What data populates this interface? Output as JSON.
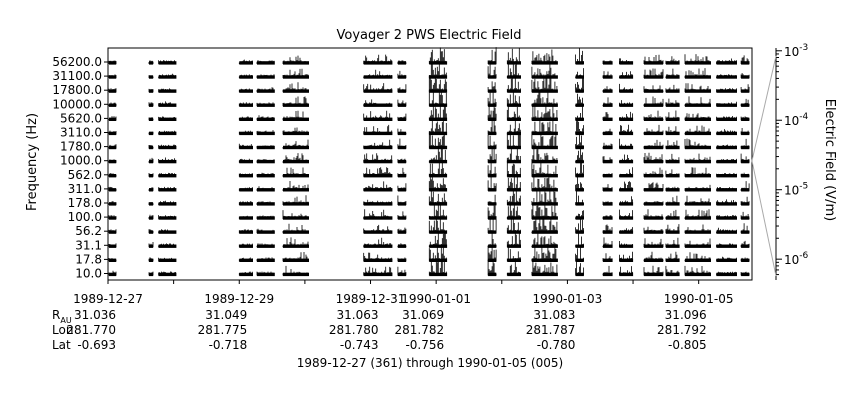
{
  "chart_data": {
    "type": "line",
    "title": "Voyager 2 PWS Electric Field",
    "ylabel": "Frequency (Hz)",
    "right_axis_label": "Electric Field (V/m)",
    "xlabel": "1989-12-27 (361) through 1990-01-05 (005)",
    "channel_frequencies_hz": [
      "56200.0",
      "31100.0",
      "17800.0",
      "10000.0",
      "5620.0",
      "3110.0",
      "1780.0",
      "1000.0",
      "562.0",
      "311.0",
      "178.0",
      "100.0",
      "56.2",
      "31.1",
      "17.8",
      "10.0"
    ],
    "right_axis_ticks": [
      {
        "base": "10",
        "exp": "-3",
        "log10": -3
      },
      {
        "base": "10",
        "exp": "-4",
        "log10": -4
      },
      {
        "base": "10",
        "exp": "-5",
        "log10": -5
      },
      {
        "base": "10",
        "exp": "-6",
        "log10": -6
      }
    ],
    "right_axis_range_log10": [
      -6.3,
      -2.96
    ],
    "x_range": [
      "1989-12-27",
      "1990-01-05T19:30"
    ],
    "x_ticks": [
      {
        "date": "1989-12-27",
        "label": "1989-12-27",
        "r_au": "31.036",
        "lon": "281.770",
        "lat": "-0.693"
      },
      {
        "date": "1989-12-28",
        "label": "",
        "r_au": "",
        "lon": "",
        "lat": ""
      },
      {
        "date": "1989-12-29",
        "label": "1989-12-29",
        "r_au": "31.049",
        "lon": "281.775",
        "lat": "-0.718"
      },
      {
        "date": "1989-12-30",
        "label": "",
        "r_au": "",
        "lon": "",
        "lat": ""
      },
      {
        "date": "1989-12-31",
        "label": "1989-12-31",
        "r_au": "31.063",
        "lon": "281.780",
        "lat": "-0.743"
      },
      {
        "date": "1990-01-01",
        "label": "1990-01-01",
        "r_au": "31.069",
        "lon": "281.782",
        "lat": "-0.756"
      },
      {
        "date": "1990-01-02",
        "label": "",
        "r_au": "",
        "lon": "",
        "lat": ""
      },
      {
        "date": "1990-01-03",
        "label": "1990-01-03",
        "r_au": "31.083",
        "lon": "281.787",
        "lat": "-0.780"
      },
      {
        "date": "1990-01-04",
        "label": "",
        "r_au": "",
        "lon": "",
        "lat": ""
      },
      {
        "date": "1990-01-05",
        "label": "1990-01-05",
        "r_au": "31.096",
        "lon": "281.792",
        "lat": "-0.805"
      }
    ],
    "ephemeris_labels": {
      "r_main": "R",
      "r_sub": "AU",
      "lon": "Lon",
      "lat": "Lat"
    },
    "data_segments": [
      {
        "start": "1989-12-27T00:00",
        "end": "1989-12-27T03:00",
        "activity": "quiet"
      },
      {
        "start": "1989-12-27T15:00",
        "end": "1989-12-27T16:30",
        "activity": "quiet"
      },
      {
        "start": "1989-12-27T18:30",
        "end": "1989-12-28T01:00",
        "activity": "quiet"
      },
      {
        "start": "1989-12-29T00:00",
        "end": "1989-12-29T05:00",
        "activity": "quiet"
      },
      {
        "start": "1989-12-29T06:30",
        "end": "1989-12-29T13:00",
        "activity": "quiet"
      },
      {
        "start": "1989-12-29T16:00",
        "end": "1989-12-30T01:30",
        "activity": "moderate"
      },
      {
        "start": "1989-12-30T21:30",
        "end": "1989-12-31T08:00",
        "activity": "moderate"
      },
      {
        "start": "1989-12-31T10:00",
        "end": "1989-12-31T13:00",
        "activity": "moderate"
      },
      {
        "start": "1989-12-31T21:30",
        "end": "1990-01-01T04:00",
        "activity": "active"
      },
      {
        "start": "1990-01-01T19:00",
        "end": "1990-01-01T22:00",
        "activity": "active"
      },
      {
        "start": "1990-01-02T02:00",
        "end": "1990-01-02T07:00",
        "activity": "active"
      },
      {
        "start": "1990-01-02T11:00",
        "end": "1990-01-02T20:30",
        "activity": "active"
      },
      {
        "start": "1990-01-03T03:00",
        "end": "1990-01-03T06:00",
        "activity": "active"
      },
      {
        "start": "1990-01-03T13:00",
        "end": "1990-01-03T16:30",
        "activity": "moderate"
      },
      {
        "start": "1990-01-03T19:00",
        "end": "1990-01-04T00:00",
        "activity": "moderate"
      },
      {
        "start": "1990-01-04T04:00",
        "end": "1990-01-04T11:00",
        "activity": "moderate"
      },
      {
        "start": "1990-01-04T12:00",
        "end": "1990-01-04T17:00",
        "activity": "moderate"
      },
      {
        "start": "1990-01-04T19:00",
        "end": "1990-01-05T04:30",
        "activity": "moderate"
      },
      {
        "start": "1990-01-05T06:30",
        "end": "1990-01-05T14:00",
        "activity": "quiet"
      },
      {
        "start": "1990-01-05T15:30",
        "end": "1990-01-05T18:30",
        "activity": "moderate"
      }
    ],
    "grid": false,
    "legend": "none"
  }
}
